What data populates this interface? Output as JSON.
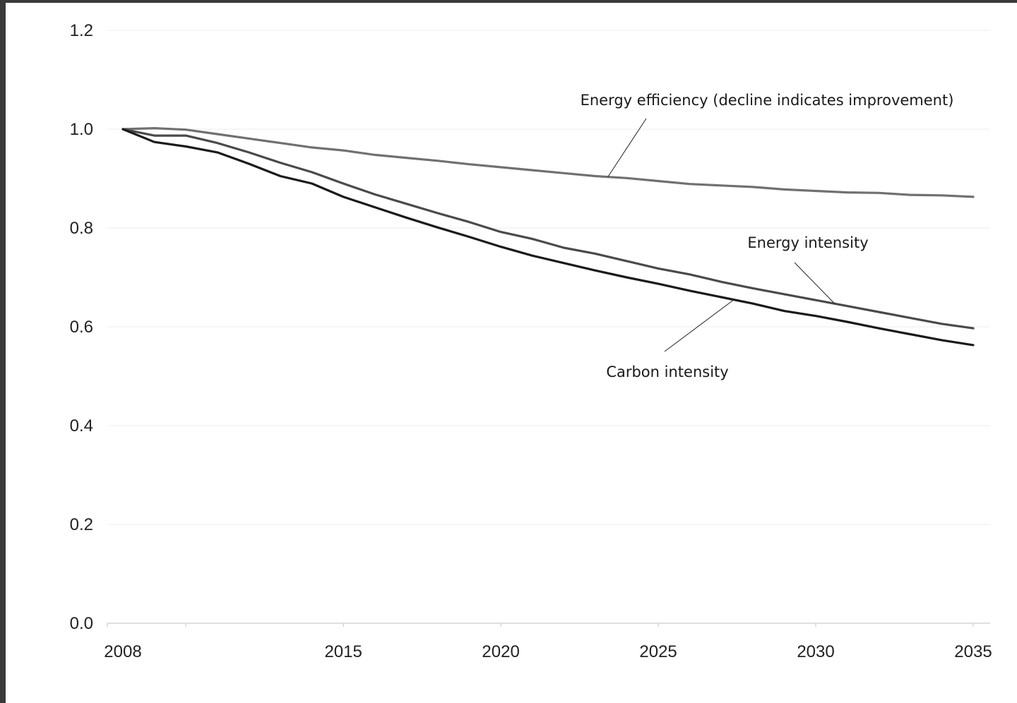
{
  "chart_data": {
    "type": "line",
    "title": "",
    "xlabel": "",
    "ylabel": "",
    "xlim": [
      2008,
      2035
    ],
    "ylim": [
      0.0,
      1.2
    ],
    "grid": true,
    "legend": "none",
    "x_ticks": [
      {
        "value": 2008,
        "label": "2008"
      },
      {
        "value": 2015,
        "label": "2015"
      },
      {
        "value": 2020,
        "label": "2020"
      },
      {
        "value": 2025,
        "label": "2025"
      },
      {
        "value": 2030,
        "label": "2030"
      },
      {
        "value": 2035,
        "label": "2035"
      }
    ],
    "y_ticks": [
      {
        "value": 0.0,
        "label": "0.0"
      },
      {
        "value": 0.2,
        "label": "0.2"
      },
      {
        "value": 0.4,
        "label": "0.4"
      },
      {
        "value": 0.6,
        "label": "0.6"
      },
      {
        "value": 0.8,
        "label": "0.8"
      },
      {
        "value": 1.0,
        "label": "1.0"
      },
      {
        "value": 1.2,
        "label": "1.2"
      }
    ],
    "x": [
      2008,
      2009,
      2010,
      2011,
      2012,
      2013,
      2014,
      2015,
      2016,
      2017,
      2018,
      2019,
      2020,
      2021,
      2022,
      2023,
      2024,
      2025,
      2026,
      2027,
      2028,
      2029,
      2030,
      2031,
      2032,
      2033,
      2034,
      2035
    ],
    "series": [
      {
        "name": "Energy efficiency (decline indicates improvement)",
        "color": "#707070",
        "values": [
          1.0,
          1.002,
          0.999,
          0.99,
          0.981,
          0.972,
          0.963,
          0.957,
          0.948,
          0.942,
          0.936,
          0.929,
          0.923,
          0.917,
          0.911,
          0.905,
          0.901,
          0.895,
          0.889,
          0.886,
          0.883,
          0.878,
          0.875,
          0.872,
          0.871,
          0.867,
          0.866,
          0.863
        ]
      },
      {
        "name": "Energy intensity",
        "color": "#4a4a4a",
        "values": [
          1.0,
          0.987,
          0.987,
          0.972,
          0.953,
          0.932,
          0.913,
          0.89,
          0.868,
          0.849,
          0.83,
          0.812,
          0.792,
          0.778,
          0.76,
          0.748,
          0.733,
          0.718,
          0.706,
          0.691,
          0.678,
          0.666,
          0.654,
          0.642,
          0.63,
          0.618,
          0.606,
          0.597
        ]
      },
      {
        "name": "Carbon intensity",
        "color": "#1a1a1a",
        "values": [
          1.0,
          0.974,
          0.965,
          0.953,
          0.93,
          0.905,
          0.89,
          0.863,
          0.842,
          0.821,
          0.801,
          0.782,
          0.762,
          0.744,
          0.729,
          0.714,
          0.7,
          0.687,
          0.673,
          0.66,
          0.647,
          0.632,
          0.622,
          0.61,
          0.597,
          0.585,
          0.573,
          0.563
        ]
      }
    ],
    "annotations": [
      {
        "text": "Energy efficiency (decline indicates improvement)",
        "series": 0,
        "x": 2023.4
      },
      {
        "text": "Energy intensity",
        "series": 1,
        "x": 2030.6
      },
      {
        "text": "Carbon intensity",
        "series": 2,
        "x": 2027.4
      }
    ]
  }
}
